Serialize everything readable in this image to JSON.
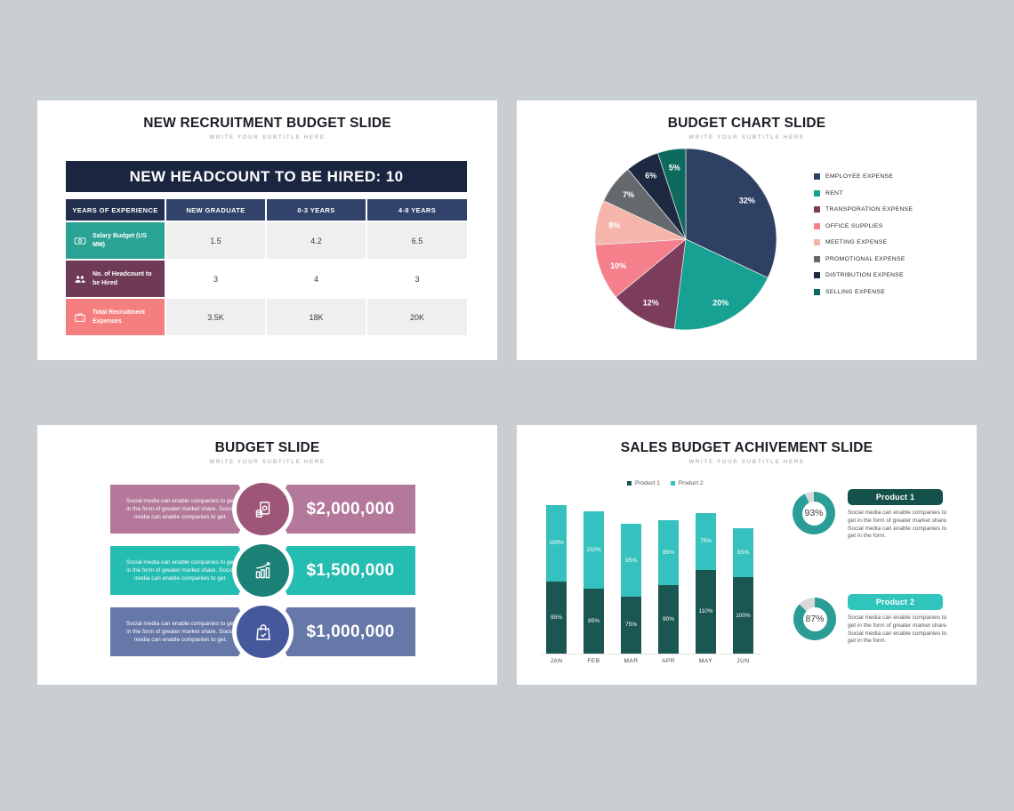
{
  "page": {
    "background": "#c9ced3"
  },
  "slides": {
    "recruitment": {
      "title": "NEW RECRUITMENT BUDGET SLIDE",
      "subtitle": "WRITE YOUR SUBTITLE HERE",
      "banner": "NEW HEADCOUNT TO BE HIRED: 10",
      "table": {
        "header_first_bg": "#232f4e",
        "header_bg": "#31436b",
        "header": [
          "YEARS OF EXPERIENCE",
          "NEW GRADUATE",
          "0-3 YEARS",
          "4-8 YEARS"
        ],
        "rows": [
          {
            "label": "Salary Budget (US MM)",
            "icon": "banknote-icon",
            "color": "#2aa395",
            "values": [
              "1.5",
              "4.2",
              "6.5"
            ]
          },
          {
            "label": "No. of Headcount to be Hired",
            "icon": "people-icon",
            "color": "#6e3a55",
            "values": [
              "3",
              "4",
              "3"
            ]
          },
          {
            "label": "Total Recruitment Expenses",
            "icon": "wallet-icon",
            "color": "#f57e7e",
            "values": [
              "3.5K",
              "18K",
              "20K"
            ]
          }
        ]
      }
    },
    "budget_chart": {
      "title": "BUDGET CHART SLIDE",
      "subtitle": "WRITE YOUR SUBTITLE HERE"
    },
    "budget": {
      "title": "BUDGET SLIDE",
      "subtitle": "WRITE YOUR SUBTITLE HERE",
      "items": [
        {
          "text": "Social media can enable companies to get in the form of greater market share. Social media can enable companies to get.",
          "amount": "$2,000,000",
          "banner_color": "#b3789a",
          "circle_color": "#9d5677",
          "icon": "money-stack-icon"
        },
        {
          "text": "Social media can enable companies to get in the form of greater market share. Social media can enable companies to get.",
          "amount": "$1,500,000",
          "banner_color": "#25bcb1",
          "circle_color": "#1b8076",
          "icon": "growth-chart-icon"
        },
        {
          "text": "Social media can enable companies to get in the form of greater market share. Social media can enable companies to get.",
          "amount": "$1,000,000",
          "banner_color": "#6678a8",
          "circle_color": "#46589c",
          "icon": "shopping-bag-icon"
        }
      ]
    },
    "sales": {
      "title": "SALES BUDGET ACHIVEMENT SLIDE",
      "subtitle": "WRITE YOUR SUBTITLE HERE",
      "products": [
        {
          "name": "Product 1",
          "percent": "93%",
          "pill_color": "#15514b",
          "text": "Social media can enable companies to get in the form of greater market share. Social media can enable companies to get in the form."
        },
        {
          "name": "Product 2",
          "percent": "87%",
          "pill_color": "#2fc5bc",
          "text": "Social media can enable companies to get in the form of greater market share. Social media can enable companies to get in the form."
        }
      ]
    }
  },
  "chart_data": [
    {
      "id": "expense-pie",
      "type": "pie",
      "title": "BUDGET CHART SLIDE",
      "labels": [
        "EMPLOYEE EXPENSE",
        "RENT",
        "TRANSPORATION EXPENSE",
        "OFFICE SUPPLIES",
        "MEETING EXPENSE",
        "PROMOTIONAL EXPENSE",
        "DISTRIBUTION EXPENSE",
        "SELLING EXPENSE"
      ],
      "values": [
        32,
        20,
        12,
        10,
        8,
        7,
        6,
        5
      ],
      "data_labels": [
        "32%",
        "20%",
        "12%",
        "10%",
        "8%",
        "7%",
        "6%",
        "5%"
      ],
      "colors": [
        "#2e4164",
        "#16a193",
        "#7c3d5c",
        "#f5808c",
        "#f6b5aa",
        "#65696d",
        "#1c2941",
        "#0e6a5e"
      ],
      "start_angle_deg": 0,
      "direction": "clockwise",
      "legend_position": "right"
    },
    {
      "id": "sales-stacked-bar",
      "type": "bar",
      "stacked": true,
      "categories": [
        "JAN",
        "FEB",
        "MAR",
        "APR",
        "MAY",
        "JUN"
      ],
      "series": [
        {
          "name": "Product 1",
          "color": "#1a5652",
          "values": [
            95,
            85,
            75,
            90,
            110,
            100
          ]
        },
        {
          "name": "Product 2",
          "color": "#35c1bd",
          "values": [
            100,
            102,
            95,
            85,
            75,
            65
          ]
        }
      ],
      "value_suffix": "%",
      "ylim": [
        0,
        195
      ],
      "grid": false,
      "legend_position": "top"
    },
    {
      "id": "product1-donut",
      "type": "pie",
      "subtype": "donut",
      "label": "93%",
      "value": 93,
      "color": "#2a9d96",
      "remainder_color": "#d9d9d9"
    },
    {
      "id": "product2-donut",
      "type": "pie",
      "subtype": "donut",
      "label": "87%",
      "value": 87,
      "color": "#2a9d96",
      "remainder_color": "#d9d9d9"
    }
  ]
}
